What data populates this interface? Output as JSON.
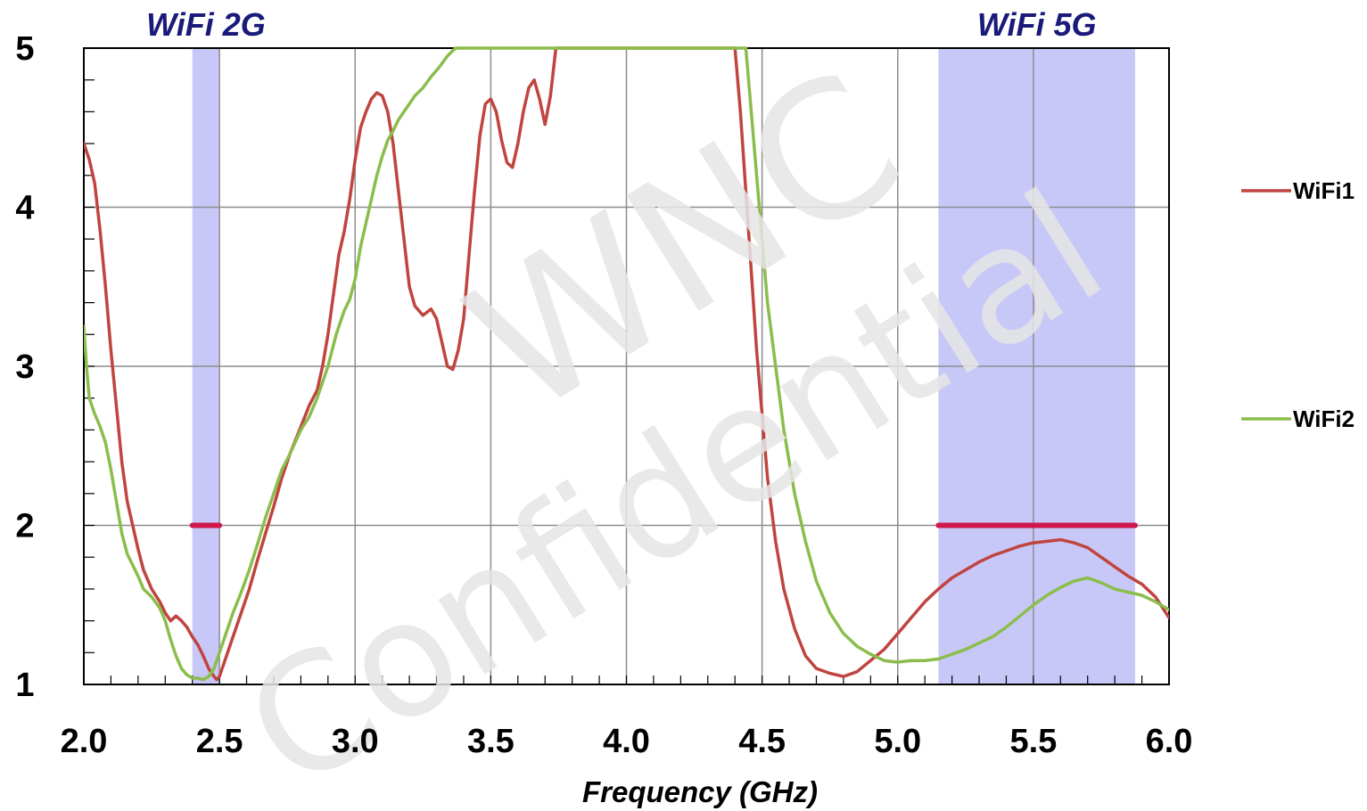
{
  "chart_data": {
    "type": "line",
    "title": "",
    "xlabel": "Frequency (GHz)",
    "ylabel": "",
    "xlim": [
      2.0,
      6.0
    ],
    "ylim": [
      1,
      5
    ],
    "x_ticks": [
      "2.0",
      "2.5",
      "3.0",
      "3.5",
      "4.0",
      "4.5",
      "5.0",
      "5.5",
      "6.0"
    ],
    "y_ticks": [
      "1",
      "2",
      "3",
      "4",
      "5"
    ],
    "grid": true,
    "legend": "right",
    "bands": [
      {
        "label": "WiFi 2G",
        "x0": 2.4,
        "x1": 2.5,
        "limit": 2.0,
        "color": "#c8c8f8"
      },
      {
        "label": "WiFi 5G",
        "x0": 5.15,
        "x1": 5.875,
        "limit": 2.0,
        "color": "#c8c8f8"
      }
    ],
    "limit_color": "#d0164a",
    "series": [
      {
        "name": "WiFi1",
        "color": "#c0443f",
        "points": [
          [
            2.0,
            4.4
          ],
          [
            2.02,
            4.3
          ],
          [
            2.04,
            4.15
          ],
          [
            2.06,
            3.85
          ],
          [
            2.08,
            3.5
          ],
          [
            2.1,
            3.1
          ],
          [
            2.12,
            2.75
          ],
          [
            2.14,
            2.4
          ],
          [
            2.16,
            2.15
          ],
          [
            2.18,
            2.0
          ],
          [
            2.2,
            1.85
          ],
          [
            2.22,
            1.72
          ],
          [
            2.25,
            1.6
          ],
          [
            2.28,
            1.52
          ],
          [
            2.3,
            1.45
          ],
          [
            2.32,
            1.4
          ],
          [
            2.34,
            1.43
          ],
          [
            2.36,
            1.4
          ],
          [
            2.38,
            1.36
          ],
          [
            2.4,
            1.3
          ],
          [
            2.42,
            1.25
          ],
          [
            2.44,
            1.18
          ],
          [
            2.46,
            1.1
          ],
          [
            2.48,
            1.05
          ],
          [
            2.49,
            1.03
          ],
          [
            2.5,
            1.05
          ],
          [
            2.52,
            1.15
          ],
          [
            2.55,
            1.3
          ],
          [
            2.58,
            1.45
          ],
          [
            2.61,
            1.6
          ],
          [
            2.64,
            1.78
          ],
          [
            2.67,
            1.95
          ],
          [
            2.7,
            2.12
          ],
          [
            2.73,
            2.3
          ],
          [
            2.76,
            2.45
          ],
          [
            2.8,
            2.62
          ],
          [
            2.83,
            2.75
          ],
          [
            2.86,
            2.85
          ],
          [
            2.88,
            3.0
          ],
          [
            2.9,
            3.2
          ],
          [
            2.92,
            3.45
          ],
          [
            2.94,
            3.7
          ],
          [
            2.96,
            3.85
          ],
          [
            2.98,
            4.05
          ],
          [
            3.0,
            4.3
          ],
          [
            3.02,
            4.5
          ],
          [
            3.04,
            4.6
          ],
          [
            3.06,
            4.68
          ],
          [
            3.08,
            4.72
          ],
          [
            3.1,
            4.7
          ],
          [
            3.12,
            4.6
          ],
          [
            3.14,
            4.4
          ],
          [
            3.16,
            4.1
          ],
          [
            3.18,
            3.8
          ],
          [
            3.2,
            3.5
          ],
          [
            3.22,
            3.38
          ],
          [
            3.25,
            3.32
          ],
          [
            3.28,
            3.36
          ],
          [
            3.3,
            3.3
          ],
          [
            3.32,
            3.15
          ],
          [
            3.34,
            3.0
          ],
          [
            3.36,
            2.98
          ],
          [
            3.38,
            3.1
          ],
          [
            3.4,
            3.3
          ],
          [
            3.42,
            3.7
          ],
          [
            3.44,
            4.1
          ],
          [
            3.46,
            4.45
          ],
          [
            3.48,
            4.65
          ],
          [
            3.5,
            4.68
          ],
          [
            3.52,
            4.6
          ],
          [
            3.54,
            4.42
          ],
          [
            3.56,
            4.28
          ],
          [
            3.58,
            4.25
          ],
          [
            3.6,
            4.4
          ],
          [
            3.62,
            4.6
          ],
          [
            3.64,
            4.75
          ],
          [
            3.66,
            4.8
          ],
          [
            3.68,
            4.68
          ],
          [
            3.7,
            4.52
          ],
          [
            3.72,
            4.7
          ],
          [
            3.74,
            5.0
          ],
          [
            4.4,
            5.0
          ],
          [
            4.42,
            4.6
          ],
          [
            4.44,
            4.1
          ],
          [
            4.46,
            3.6
          ],
          [
            4.48,
            3.1
          ],
          [
            4.5,
            2.7
          ],
          [
            4.52,
            2.3
          ],
          [
            4.55,
            1.9
          ],
          [
            4.58,
            1.6
          ],
          [
            4.62,
            1.35
          ],
          [
            4.66,
            1.18
          ],
          [
            4.7,
            1.1
          ],
          [
            4.75,
            1.07
          ],
          [
            4.8,
            1.05
          ],
          [
            4.85,
            1.08
          ],
          [
            4.9,
            1.15
          ],
          [
            4.95,
            1.22
          ],
          [
            5.0,
            1.32
          ],
          [
            5.05,
            1.42
          ],
          [
            5.1,
            1.52
          ],
          [
            5.15,
            1.6
          ],
          [
            5.2,
            1.67
          ],
          [
            5.25,
            1.72
          ],
          [
            5.3,
            1.77
          ],
          [
            5.35,
            1.81
          ],
          [
            5.4,
            1.84
          ],
          [
            5.45,
            1.87
          ],
          [
            5.5,
            1.89
          ],
          [
            5.55,
            1.9
          ],
          [
            5.6,
            1.91
          ],
          [
            5.65,
            1.89
          ],
          [
            5.7,
            1.86
          ],
          [
            5.75,
            1.8
          ],
          [
            5.8,
            1.74
          ],
          [
            5.85,
            1.68
          ],
          [
            5.9,
            1.63
          ],
          [
            5.95,
            1.55
          ],
          [
            6.0,
            1.42
          ]
        ]
      },
      {
        "name": "WiFi2",
        "color": "#8bbd4c",
        "points": [
          [
            2.0,
            3.25
          ],
          [
            2.01,
            3.0
          ],
          [
            2.02,
            2.8
          ],
          [
            2.04,
            2.7
          ],
          [
            2.06,
            2.62
          ],
          [
            2.08,
            2.52
          ],
          [
            2.1,
            2.35
          ],
          [
            2.12,
            2.15
          ],
          [
            2.14,
            1.95
          ],
          [
            2.16,
            1.82
          ],
          [
            2.18,
            1.75
          ],
          [
            2.2,
            1.68
          ],
          [
            2.22,
            1.6
          ],
          [
            2.25,
            1.55
          ],
          [
            2.28,
            1.48
          ],
          [
            2.3,
            1.4
          ],
          [
            2.32,
            1.28
          ],
          [
            2.34,
            1.18
          ],
          [
            2.36,
            1.1
          ],
          [
            2.38,
            1.06
          ],
          [
            2.4,
            1.04
          ],
          [
            2.42,
            1.04
          ],
          [
            2.44,
            1.03
          ],
          [
            2.46,
            1.05
          ],
          [
            2.48,
            1.1
          ],
          [
            2.5,
            1.2
          ],
          [
            2.52,
            1.3
          ],
          [
            2.55,
            1.45
          ],
          [
            2.58,
            1.58
          ],
          [
            2.61,
            1.72
          ],
          [
            2.64,
            1.88
          ],
          [
            2.67,
            2.05
          ],
          [
            2.7,
            2.2
          ],
          [
            2.73,
            2.35
          ],
          [
            2.76,
            2.45
          ],
          [
            2.8,
            2.6
          ],
          [
            2.83,
            2.68
          ],
          [
            2.86,
            2.8
          ],
          [
            2.9,
            3.0
          ],
          [
            2.93,
            3.2
          ],
          [
            2.96,
            3.35
          ],
          [
            2.98,
            3.42
          ],
          [
            3.0,
            3.55
          ],
          [
            3.02,
            3.75
          ],
          [
            3.04,
            3.9
          ],
          [
            3.06,
            4.05
          ],
          [
            3.08,
            4.2
          ],
          [
            3.1,
            4.32
          ],
          [
            3.12,
            4.42
          ],
          [
            3.14,
            4.48
          ],
          [
            3.16,
            4.55
          ],
          [
            3.18,
            4.6
          ],
          [
            3.2,
            4.65
          ],
          [
            3.22,
            4.7
          ],
          [
            3.25,
            4.75
          ],
          [
            3.28,
            4.82
          ],
          [
            3.31,
            4.88
          ],
          [
            3.34,
            4.95
          ],
          [
            3.37,
            5.0
          ],
          [
            4.44,
            5.0
          ],
          [
            4.46,
            4.6
          ],
          [
            4.48,
            4.2
          ],
          [
            4.5,
            3.8
          ],
          [
            4.52,
            3.4
          ],
          [
            4.55,
            3.0
          ],
          [
            4.58,
            2.6
          ],
          [
            4.62,
            2.2
          ],
          [
            4.66,
            1.9
          ],
          [
            4.7,
            1.65
          ],
          [
            4.75,
            1.45
          ],
          [
            4.8,
            1.32
          ],
          [
            4.85,
            1.24
          ],
          [
            4.9,
            1.19
          ],
          [
            4.95,
            1.15
          ],
          [
            5.0,
            1.14
          ],
          [
            5.05,
            1.15
          ],
          [
            5.1,
            1.15
          ],
          [
            5.15,
            1.16
          ],
          [
            5.2,
            1.19
          ],
          [
            5.25,
            1.22
          ],
          [
            5.3,
            1.26
          ],
          [
            5.35,
            1.3
          ],
          [
            5.4,
            1.36
          ],
          [
            5.45,
            1.43
          ],
          [
            5.5,
            1.5
          ],
          [
            5.55,
            1.56
          ],
          [
            5.6,
            1.61
          ],
          [
            5.65,
            1.65
          ],
          [
            5.7,
            1.67
          ],
          [
            5.75,
            1.64
          ],
          [
            5.8,
            1.6
          ],
          [
            5.85,
            1.58
          ],
          [
            5.9,
            1.56
          ],
          [
            5.95,
            1.52
          ],
          [
            6.0,
            1.47
          ]
        ]
      }
    ]
  },
  "watermark": {
    "line1": "WNC",
    "line2": "Confidential"
  }
}
